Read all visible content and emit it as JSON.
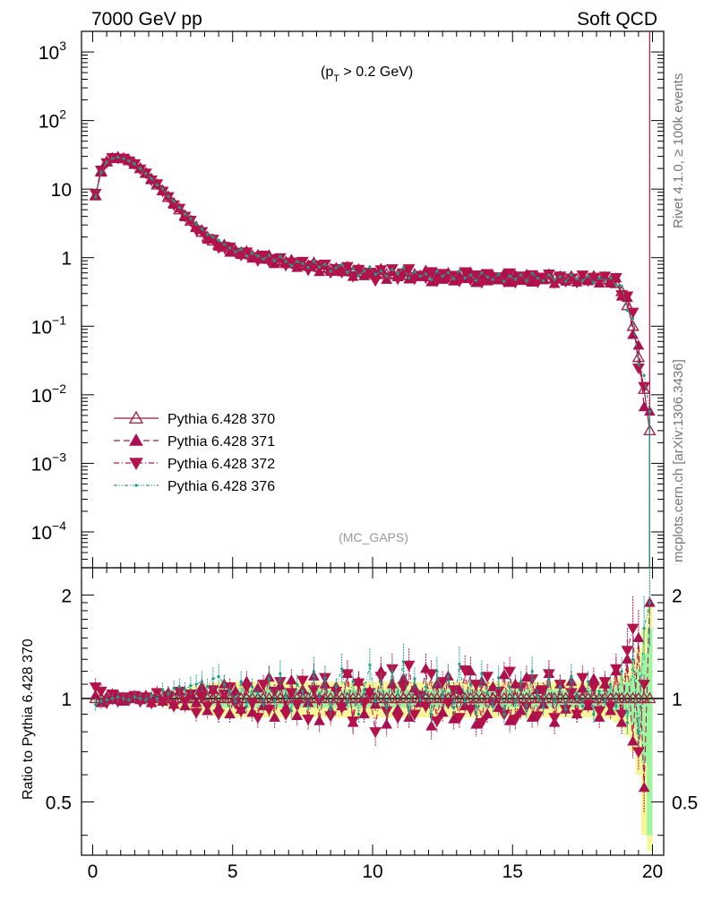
{
  "header": {
    "left": "7000 GeV pp",
    "right": "Soft QCD"
  },
  "side": {
    "top": "Rivet 4.1.0, ≥ 100k events",
    "bottom": "mcplots.cern.ch [arXiv:1306.3436]"
  },
  "chart_data": {
    "type": "line",
    "title": "(p_T > 0.2 GeV)",
    "title_main": "(p",
    "title_sub": "T",
    "title_rest": " > 0.2 GeV)",
    "watermark": "(MC_GAPS)",
    "xlabel": "",
    "ylabel_ratio": "Ratio to Pythia 6.428 370",
    "xlim": [
      -0.4,
      20.4
    ],
    "ylim": [
      3e-05,
      2000
    ],
    "yscale": "log",
    "ratio_ylim": [
      0.35,
      2.4
    ],
    "ratio_yscale": "log",
    "x_ticks": [
      "0",
      "5",
      "10",
      "15",
      "20"
    ],
    "y_ticks": [
      {
        "v": 1000,
        "base": "10",
        "exp": "3"
      },
      {
        "v": 100,
        "base": "10",
        "exp": "2"
      },
      {
        "v": 10,
        "base": "10",
        "exp": ""
      },
      {
        "v": 1,
        "base": "1",
        "exp": ""
      },
      {
        "v": 0.1,
        "base": "10",
        "exp": "−1"
      },
      {
        "v": 0.01,
        "base": "10",
        "exp": "−2"
      },
      {
        "v": 0.001,
        "base": "10",
        "exp": "−3"
      },
      {
        "v": 0.0001,
        "base": "10",
        "exp": "−4"
      }
    ],
    "ratio_ticks": [
      "0.5",
      "1",
      "2"
    ],
    "x": [
      0.1,
      0.3,
      0.5,
      0.7,
      0.9,
      1.1,
      1.3,
      1.5,
      1.7,
      1.9,
      2.1,
      2.3,
      2.5,
      2.7,
      2.9,
      3.1,
      3.3,
      3.5,
      3.7,
      3.9,
      4.1,
      4.3,
      4.5,
      4.7,
      4.9,
      5.1,
      5.3,
      5.5,
      5.7,
      5.9,
      6.1,
      6.3,
      6.5,
      6.7,
      6.9,
      7.1,
      7.3,
      7.5,
      7.7,
      7.9,
      8.1,
      8.3,
      8.5,
      8.7,
      8.9,
      9.1,
      9.3,
      9.5,
      9.7,
      9.9,
      10.1,
      10.3,
      10.5,
      10.7,
      10.9,
      11.1,
      11.3,
      11.5,
      11.7,
      11.9,
      12.1,
      12.3,
      12.5,
      12.7,
      12.9,
      13.1,
      13.3,
      13.5,
      13.7,
      13.9,
      14.1,
      14.3,
      14.5,
      14.7,
      14.9,
      15.1,
      15.3,
      15.5,
      15.7,
      15.9,
      16.1,
      16.3,
      16.5,
      16.7,
      16.9,
      17.1,
      17.3,
      17.5,
      17.7,
      17.9,
      18.1,
      18.3,
      18.5,
      18.7,
      18.9,
      19.1,
      19.3,
      19.5,
      19.7,
      19.9
    ],
    "reference": [
      8,
      18,
      25,
      28,
      29,
      28,
      26,
      23,
      20,
      17,
      14,
      11.5,
      9.5,
      7.6,
      6.2,
      5,
      4.1,
      3.4,
      2.8,
      2.35,
      2,
      1.75,
      1.55,
      1.42,
      1.32,
      1.24,
      1.18,
      1.12,
      1.07,
      1.03,
      0.99,
      0.95,
      0.92,
      0.89,
      0.86,
      0.83,
      0.8,
      0.78,
      0.76,
      0.74,
      0.72,
      0.7,
      0.68,
      0.66,
      0.65,
      0.63,
      0.62,
      0.61,
      0.6,
      0.59,
      0.58,
      0.575,
      0.57,
      0.565,
      0.56,
      0.555,
      0.55,
      0.545,
      0.54,
      0.535,
      0.53,
      0.53,
      0.525,
      0.52,
      0.52,
      0.515,
      0.515,
      0.51,
      0.51,
      0.51,
      0.505,
      0.505,
      0.5,
      0.5,
      0.5,
      0.5,
      0.5,
      0.495,
      0.495,
      0.495,
      0.49,
      0.49,
      0.49,
      0.49,
      0.485,
      0.485,
      0.485,
      0.485,
      0.48,
      0.48,
      0.48,
      0.48,
      0.46,
      0.42,
      0.32,
      0.2,
      0.1,
      0.035,
      0.012,
      0.003
    ],
    "band_inner": [
      0.02,
      0.02,
      0.02,
      0.02,
      0.02,
      0.02,
      0.02,
      0.02,
      0.03,
      0.03,
      0.03,
      0.03,
      0.03,
      0.04,
      0.04,
      0.04,
      0.04,
      0.04,
      0.05,
      0.05,
      0.05,
      0.05,
      0.06,
      0.06,
      0.06,
      0.06,
      0.06,
      0.06,
      0.06,
      0.06,
      0.06,
      0.06,
      0.06,
      0.06,
      0.06,
      0.06,
      0.06,
      0.06,
      0.06,
      0.06,
      0.06,
      0.06,
      0.06,
      0.06,
      0.06,
      0.06,
      0.06,
      0.06,
      0.06,
      0.06,
      0.06,
      0.06,
      0.06,
      0.06,
      0.06,
      0.06,
      0.06,
      0.06,
      0.06,
      0.06,
      0.06,
      0.06,
      0.06,
      0.06,
      0.06,
      0.06,
      0.06,
      0.06,
      0.06,
      0.06,
      0.06,
      0.06,
      0.06,
      0.06,
      0.06,
      0.06,
      0.06,
      0.06,
      0.06,
      0.06,
      0.06,
      0.06,
      0.06,
      0.06,
      0.06,
      0.06,
      0.06,
      0.06,
      0.06,
      0.06,
      0.06,
      0.06,
      0.07,
      0.08,
      0.1,
      0.12,
      0.16,
      0.22,
      0.35,
      0.6
    ],
    "band_outer": [
      0.03,
      0.03,
      0.03,
      0.03,
      0.03,
      0.03,
      0.03,
      0.03,
      0.04,
      0.04,
      0.04,
      0.05,
      0.05,
      0.06,
      0.06,
      0.07,
      0.07,
      0.08,
      0.09,
      0.1,
      0.1,
      0.11,
      0.12,
      0.12,
      0.12,
      0.12,
      0.12,
      0.12,
      0.12,
      0.12,
      0.12,
      0.12,
      0.12,
      0.12,
      0.12,
      0.12,
      0.12,
      0.12,
      0.12,
      0.12,
      0.12,
      0.12,
      0.12,
      0.12,
      0.12,
      0.12,
      0.12,
      0.12,
      0.12,
      0.12,
      0.12,
      0.12,
      0.12,
      0.12,
      0.12,
      0.12,
      0.12,
      0.12,
      0.12,
      0.12,
      0.12,
      0.12,
      0.12,
      0.12,
      0.12,
      0.12,
      0.12,
      0.12,
      0.12,
      0.12,
      0.12,
      0.12,
      0.12,
      0.12,
      0.12,
      0.12,
      0.12,
      0.12,
      0.12,
      0.12,
      0.12,
      0.12,
      0.12,
      0.12,
      0.12,
      0.12,
      0.12,
      0.12,
      0.12,
      0.12,
      0.12,
      0.12,
      0.13,
      0.15,
      0.18,
      0.22,
      0.3,
      0.4,
      0.6,
      0.9
    ],
    "series": [
      {
        "name": "Pythia 6.428 370",
        "color": "#9e1b3f",
        "marker": "triangle-up-open",
        "dash": "",
        "ratio": [
          1,
          1,
          1,
          1,
          1,
          1,
          1,
          1,
          1,
          1,
          1,
          1,
          1,
          1,
          1,
          1,
          1,
          1,
          1,
          1,
          1,
          1,
          1,
          1,
          1,
          1,
          1,
          1,
          1,
          1,
          1,
          1,
          1,
          1,
          1,
          1,
          1,
          1,
          1,
          1,
          1,
          1,
          1,
          1,
          1,
          1,
          1,
          1,
          1,
          1,
          1,
          1,
          1,
          1,
          1,
          1,
          1,
          1,
          1,
          1,
          1,
          1,
          1,
          1,
          1,
          1,
          1,
          1,
          1,
          1,
          1,
          1,
          1,
          1,
          1,
          1,
          1,
          1,
          1,
          1,
          1,
          1,
          1,
          1,
          1,
          1,
          1,
          1,
          1,
          1,
          1,
          1,
          1,
          1,
          1,
          1,
          1,
          1,
          1,
          1
        ]
      },
      {
        "name": "Pythia 6.428 371",
        "color": "#a8104f",
        "marker": "triangle-up",
        "dash": "7,4",
        "ratio": [
          1.02,
          0.97,
          1.01,
          0.99,
          1.02,
          0.98,
          1,
          1.01,
          0.99,
          1.02,
          0.97,
          1.03,
          0.98,
          1.04,
          0.96,
          1.05,
          0.95,
          1.03,
          0.97,
          1.08,
          0.92,
          1.06,
          0.94,
          1.1,
          0.9,
          1.05,
          0.93,
          1.12,
          0.91,
          1.07,
          0.95,
          1.15,
          0.88,
          1.09,
          0.94,
          1.13,
          0.89,
          1.06,
          0.97,
          1.16,
          0.86,
          1.1,
          0.92,
          1.08,
          0.95,
          1.18,
          0.85,
          1.12,
          0.9,
          1.05,
          0.96,
          1.2,
          0.84,
          1.1,
          0.93,
          1.14,
          0.88,
          1.07,
          0.97,
          1.22,
          0.83,
          1.1,
          0.91,
          1.16,
          0.87,
          1.06,
          0.95,
          1.2,
          0.84,
          1.12,
          0.9,
          1.08,
          0.94,
          1.17,
          0.86,
          1.1,
          0.92,
          1.15,
          0.88,
          1.06,
          0.96,
          1.18,
          0.85,
          1.1,
          0.93,
          1.12,
          0.9,
          1.07,
          0.95,
          1.14,
          0.88,
          1.1,
          0.92,
          1.2,
          0.85,
          1.3,
          0.75,
          1.5,
          0.55,
          1.9
        ]
      },
      {
        "name": "Pythia 6.428 372",
        "color": "#b5124a",
        "marker": "triangle-down",
        "dash": "6,3,1,3",
        "ratio": [
          1.08,
          1.05,
          0.97,
          1.03,
          0.98,
          1.01,
          0.99,
          1.02,
          0.98,
          1.01,
          0.97,
          1.04,
          0.98,
          1.02,
          0.95,
          1.05,
          0.98,
          1.03,
          0.91,
          1.02,
          0.95,
          1.06,
          0.9,
          1.03,
          1.08,
          0.97,
          0.92,
          1.08,
          0.97,
          0.88,
          1.1,
          0.93,
          1.05,
          1.12,
          0.9,
          1.04,
          0.96,
          1.13,
          0.87,
          1.06,
          0.99,
          1.15,
          0.89,
          1.05,
          0.94,
          1.18,
          0.86,
          1.11,
          0.97,
          1.04,
          0.8,
          1.16,
          0.92,
          1.22,
          0.88,
          1.08,
          1.25,
          0.9,
          1.02,
          0.95,
          1.18,
          0.86,
          1.12,
          0.97,
          1.06,
          0.88,
          1.21,
          0.93,
          1.1,
          0.85,
          1.16,
          0.97,
          1.05,
          0.9,
          1.2,
          0.87,
          1.08,
          0.95,
          1.14,
          0.89,
          1.06,
          1.18,
          0.88,
          1.1,
          0.93,
          1.04,
          0.9,
          1.15,
          0.96,
          1.08,
          0.92,
          1.12,
          0.95,
          1.22,
          0.9,
          1.38,
          1.6,
          0.7,
          1.1
        ]
      },
      {
        "name": "Pythia 6.428 376",
        "color": "#1a9e8e",
        "marker": "dot",
        "dash": "4,2,1,2,1,2",
        "ratio": [
          0.96,
          0.98,
          0.99,
          1,
          1.01,
          1,
          0.99,
          1.01,
          1,
          0.99,
          1.02,
          1,
          1.06,
          1.03,
          1.07,
          1.08,
          1.06,
          1.09,
          1.1,
          1.12,
          1.08,
          1.14,
          1.16,
          1.1,
          1.05,
          0.98,
          1.12,
          0.95,
          1.08,
          1.03,
          0.96,
          1.14,
          0.98,
          1.18,
          1.02,
          0.92,
          1.1,
          1.05,
          0.95,
          1.2,
          1.01,
          1.15,
          0.93,
          1.08,
          1.22,
          0.97,
          1.12,
          0.9,
          1.06,
          1.25,
          0.98,
          1.11,
          0.94,
          1.19,
          1.03,
          1.28,
          0.92,
          1.14,
          0.99,
          1.08,
          0.9,
          1.2,
          1.02,
          1.16,
          0.94,
          1.26,
          0.98,
          1.1,
          0.91,
          1.18,
          1.04,
          0.95,
          1.15,
          0.9,
          1.08,
          0.97,
          1.12,
          0.92,
          1.2,
          1.02,
          0.94,
          1.14,
          0.98,
          1.08,
          0.93,
          1.16,
          1.01,
          0.95,
          1.12,
          0.9,
          1.05,
          0.98,
          1.1,
          0.95,
          1.2,
          0.85,
          1.3,
          0.8,
          1.6,
          1.9
        ]
      }
    ]
  }
}
